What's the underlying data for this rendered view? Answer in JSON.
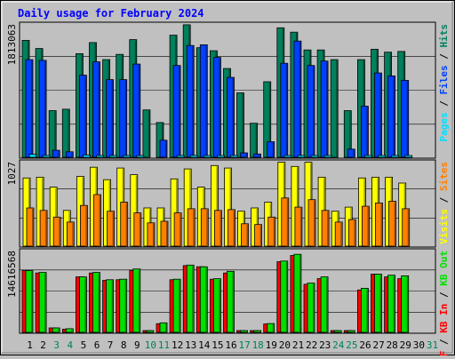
{
  "chart_data": {
    "type": "bar",
    "title": "Daily usage for February 2024",
    "days": [
      "1",
      "2",
      "3",
      "4",
      "5",
      "6",
      "7",
      "8",
      "9",
      "10",
      "11",
      "12",
      "13",
      "14",
      "15",
      "16",
      "17",
      "18",
      "19",
      "20",
      "21",
      "22",
      "23",
      "24",
      "25",
      "26",
      "27",
      "28",
      "29",
      "30",
      "31"
    ],
    "weekend_days": [
      "3",
      "4",
      "10",
      "11",
      "17",
      "18",
      "24",
      "25",
      "31"
    ],
    "panels": [
      {
        "id": "top",
        "scale_label": "1813063",
        "ylim": [
          0,
          1813063
        ],
        "legend": [
          "Pages",
          "Files",
          "Hits"
        ],
        "series": [
          {
            "name": "Hits",
            "values": [
              1580000,
              1470000,
              630000,
              650000,
              1400000,
              1550000,
              1320000,
              1390000,
              1590000,
              640000,
              470000,
              1650000,
              1790000,
              1480000,
              1440000,
              1200000,
              870000,
              460000,
              1020000,
              1750000,
              1690000,
              1450000,
              1450000,
              1320000,
              630000,
              1320000,
              1460000,
              1420000,
              1430000,
              0,
              0
            ]
          },
          {
            "name": "Files",
            "values": [
              1320000,
              1310000,
              95000,
              75000,
              1110000,
              1290000,
              1050000,
              1050000,
              1260000,
              0,
              230000,
              1240000,
              1510000,
              1520000,
              1350000,
              1080000,
              60000,
              45000,
              210000,
              1270000,
              1570000,
              1240000,
              1300000,
              0,
              110000,
              690000,
              1140000,
              1100000,
              1040000,
              0,
              0
            ]
          },
          {
            "name": "Pages",
            "values": [
              40000,
              15000,
              0,
              0,
              30000,
              20000,
              20000,
              15000,
              20000,
              0,
              0,
              15000,
              25000,
              20000,
              20000,
              15000,
              0,
              0,
              0,
              15000,
              25000,
              20000,
              20000,
              0,
              0,
              15000,
              20000,
              20000,
              20000,
              0,
              0
            ]
          }
        ]
      },
      {
        "id": "middle",
        "scale_label": "1027",
        "ylim": [
          0,
          1027
        ],
        "legend": [
          "Visits",
          "Sites"
        ],
        "series": [
          {
            "name": "Visits",
            "values": [
              820,
              830,
              710,
              430,
              840,
              950,
              800,
              940,
              860,
              460,
              460,
              810,
              930,
              710,
              970,
              940,
              420,
              460,
              530,
              1010,
              960,
              1010,
              830,
              420,
              470,
              820,
              830,
              830,
              760,
              0,
              0
            ]
          },
          {
            "name": "Sites",
            "values": [
              460,
              430,
              350,
              290,
              490,
              620,
              420,
              530,
              400,
              280,
              300,
              400,
              450,
              450,
              430,
              440,
              270,
              260,
              350,
              580,
              470,
              560,
              430,
              290,
              320,
              480,
              520,
              540,
              450,
              0,
              0
            ]
          }
        ]
      },
      {
        "id": "bottom",
        "scale_label": "14616568",
        "ylim": [
          0,
          14616568
        ],
        "legend": [
          "KB F",
          "KB In",
          "KB Out"
        ],
        "series": [
          {
            "name": "KB F",
            "values": [
              10900000,
              10500000,
              780000,
              550000,
              9800000,
              10500000,
              9200000,
              9300000,
              10900000,
              120000,
              1530000,
              9300000,
              11800000,
              11600000,
              9400000,
              10500000,
              280000,
              280000,
              1480000,
              12500000,
              13600000,
              8500000,
              9500000,
              160000,
              160000,
              7500000,
              10300000,
              9800000,
              9500000,
              0,
              0
            ]
          },
          {
            "name": "KB In",
            "values": [
              0,
              0,
              0,
              0,
              0,
              0,
              0,
              0,
              0,
              0,
              0,
              0,
              0,
              0,
              0,
              0,
              0,
              0,
              0,
              0,
              0,
              0,
              0,
              0,
              0,
              0,
              0,
              0,
              0,
              0,
              0
            ]
          },
          {
            "name": "KB Out",
            "values": [
              10900000,
              10600000,
              780000,
              640000,
              9800000,
              10600000,
              9300000,
              9400000,
              11200000,
              150000,
              1680000,
              9400000,
              11900000,
              11600000,
              9500000,
              10800000,
              310000,
              310000,
              1550000,
              12600000,
              13800000,
              8700000,
              9800000,
              150000,
              150000,
              7800000,
              10300000,
              10100000,
              10000000,
              0,
              0
            ]
          }
        ]
      }
    ]
  },
  "colors": {
    "background": "#c0c0c0",
    "title": "#0000ff",
    "hits": "#00805c",
    "files": "#0040ff",
    "pages": "#00e0ff",
    "visits": "#ffff00",
    "sites": "#ff8000",
    "kbf": "#ff0000",
    "kbout": "#00e000",
    "weekday_label": "#000000",
    "weekend_label": "#00805c"
  }
}
